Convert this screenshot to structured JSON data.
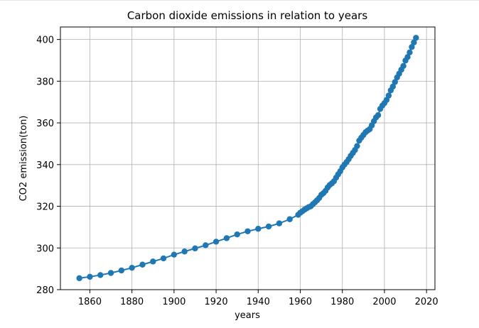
{
  "chart_data": {
    "type": "line",
    "title": "Carbon dioxide emissions in relation to years",
    "xlabel": "years",
    "ylabel": "CO2 emission(ton)",
    "xlim": [
      1846,
      2024
    ],
    "ylim": [
      280,
      406
    ],
    "xticks": [
      1860,
      1880,
      1900,
      1920,
      1940,
      1960,
      1980,
      2000,
      2020
    ],
    "yticks": [
      280,
      300,
      320,
      340,
      360,
      380,
      400
    ],
    "grid": true,
    "marker": "circle",
    "series": [
      {
        "name": "CO2 emission",
        "color": "#1f77b4",
        "x": [
          1855,
          1860,
          1865,
          1870,
          1875,
          1880,
          1885,
          1890,
          1895,
          1900,
          1905,
          1910,
          1915,
          1920,
          1925,
          1930,
          1935,
          1940,
          1945,
          1950,
          1955,
          1959,
          1960,
          1961,
          1962,
          1963,
          1964,
          1965,
          1966,
          1967,
          1968,
          1969,
          1970,
          1971,
          1972,
          1973,
          1974,
          1975,
          1976,
          1977,
          1978,
          1979,
          1980,
          1981,
          1982,
          1983,
          1984,
          1985,
          1986,
          1987,
          1988,
          1989,
          1990,
          1991,
          1992,
          1993,
          1994,
          1995,
          1996,
          1997,
          1998,
          1999,
          2000,
          2001,
          2002,
          2003,
          2004,
          2005,
          2006,
          2007,
          2008,
          2009,
          2010,
          2011,
          2012,
          2013,
          2014,
          2015
        ],
        "y": [
          285.5,
          286.2,
          287.0,
          288.0,
          289.2,
          290.5,
          292.0,
          293.5,
          295.0,
          296.8,
          298.3,
          299.8,
          301.3,
          303.0,
          304.7,
          306.5,
          308.0,
          309.2,
          310.3,
          311.8,
          313.8,
          315.9,
          316.9,
          317.6,
          318.4,
          319.0,
          319.6,
          320.0,
          321.0,
          321.9,
          322.9,
          324.0,
          325.5,
          326.3,
          327.4,
          329.0,
          330.2,
          331.0,
          332.0,
          333.7,
          335.3,
          336.8,
          338.6,
          340.0,
          341.2,
          342.6,
          344.2,
          345.6,
          347.0,
          348.9,
          351.5,
          352.9,
          354.2,
          355.5,
          356.3,
          357.0,
          358.8,
          360.8,
          362.6,
          363.7,
          366.7,
          368.3,
          369.5,
          371.0,
          373.1,
          375.6,
          377.4,
          379.6,
          381.8,
          383.6,
          385.5,
          387.3,
          389.9,
          391.6,
          393.8,
          396.4,
          398.6,
          400.8
        ]
      }
    ]
  }
}
